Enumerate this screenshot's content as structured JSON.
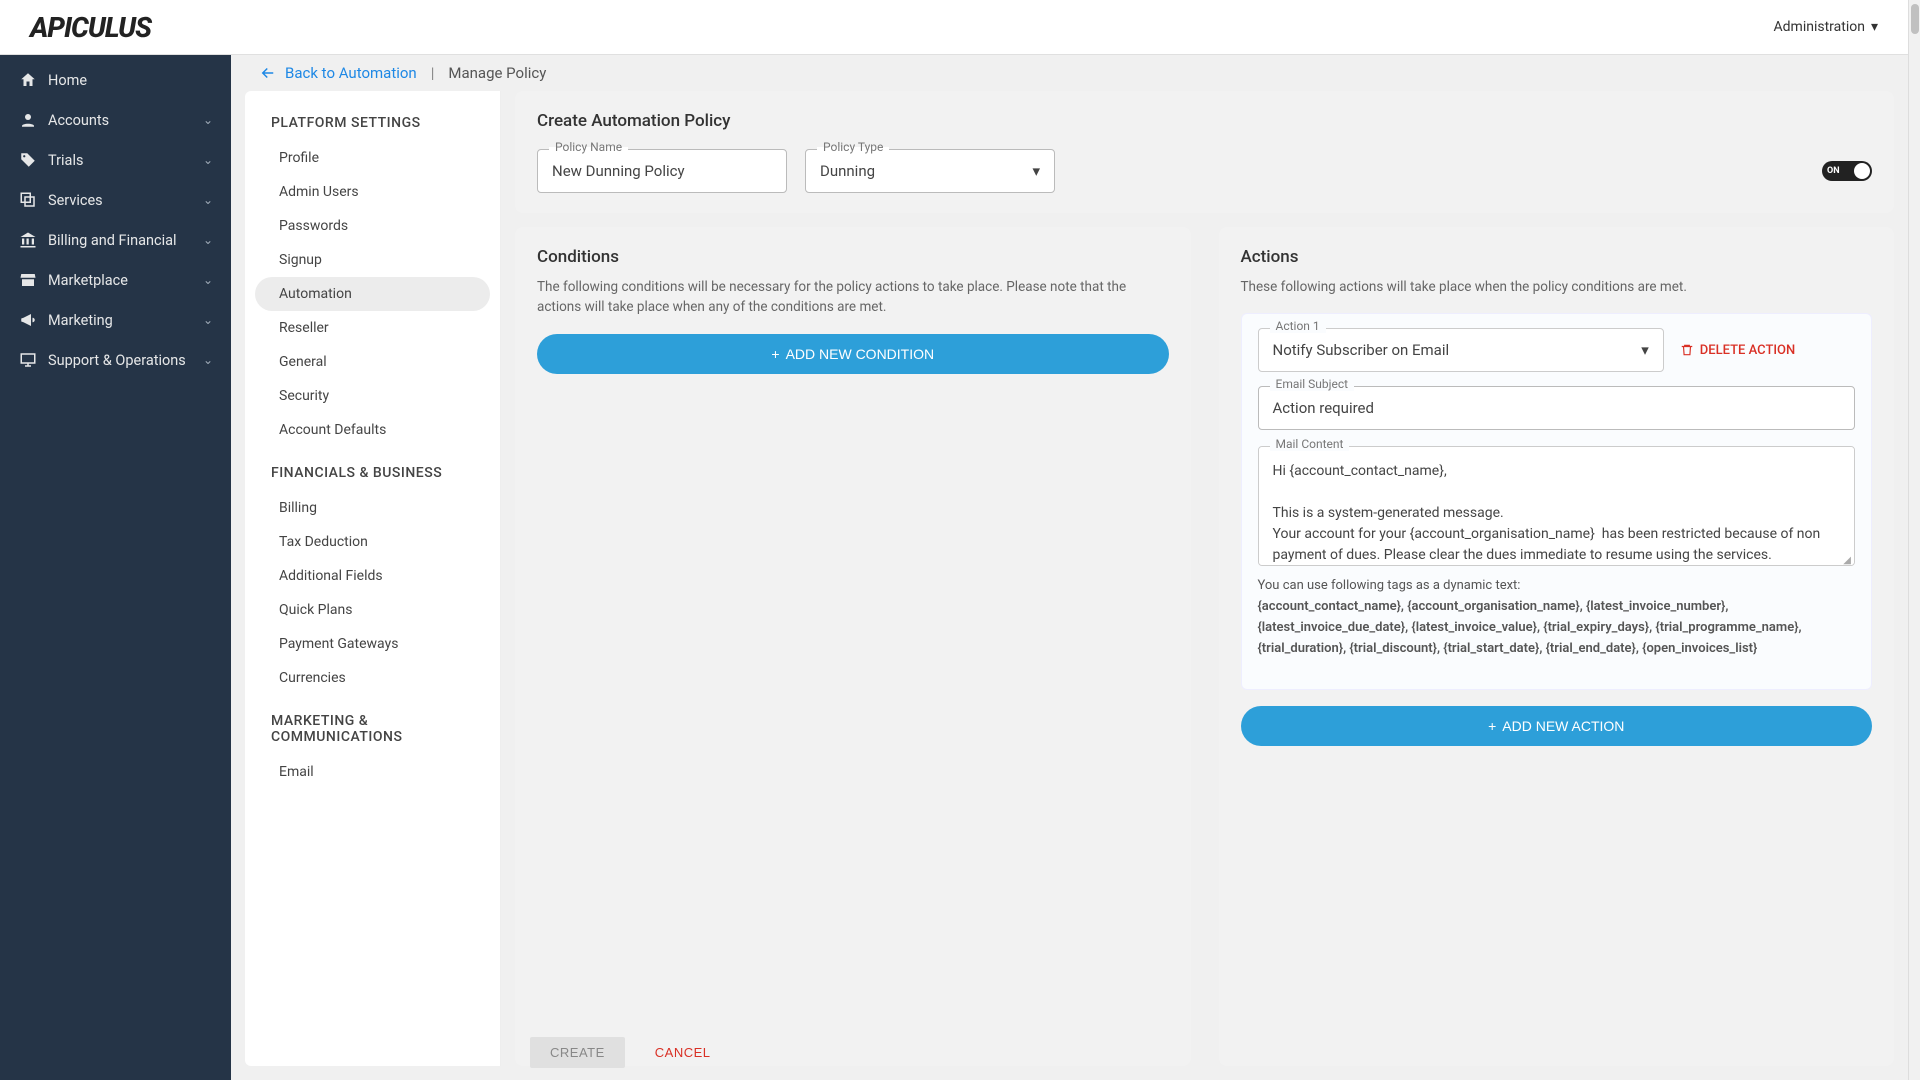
{
  "brand": "APICULUS",
  "top_nav": {
    "admin_label": "Administration"
  },
  "sidebar": {
    "items": [
      {
        "label": "Home",
        "icon": "home"
      },
      {
        "label": "Accounts",
        "icon": "account",
        "chev": true
      },
      {
        "label": "Trials",
        "icon": "tag",
        "chev": true
      },
      {
        "label": "Services",
        "icon": "layers",
        "chev": true
      },
      {
        "label": "Billing and Financial",
        "icon": "bank",
        "chev": true
      },
      {
        "label": "Marketplace",
        "icon": "store",
        "chev": true
      },
      {
        "label": "Marketing",
        "icon": "megaphone",
        "chev": true
      },
      {
        "label": "Support & Operations",
        "icon": "monitor",
        "chev": true
      }
    ]
  },
  "breadcrumb": {
    "back": "Back to Automation",
    "current": "Manage Policy"
  },
  "settings": {
    "groups": [
      {
        "title": "PLATFORM SETTINGS",
        "items": [
          "Profile",
          "Admin Users",
          "Passwords",
          "Signup",
          "Automation",
          "Reseller",
          "General",
          "Security",
          "Account Defaults"
        ],
        "active": "Automation"
      },
      {
        "title": "FINANCIALS & BUSINESS",
        "items": [
          "Billing",
          "Tax Deduction",
          "Additional Fields",
          "Quick Plans",
          "Payment Gateways",
          "Currencies"
        ]
      },
      {
        "title": "MARKETING & COMMUNICATIONS",
        "items": [
          "Email"
        ]
      }
    ]
  },
  "policy": {
    "card_title": "Create Automation Policy",
    "name_label": "Policy Name",
    "name_value": "New Dunning Policy",
    "type_label": "Policy Type",
    "type_value": "Dunning",
    "toggle_label": "ON"
  },
  "conditions": {
    "title": "Conditions",
    "desc": "The following conditions will be necessary for the policy actions to take place. Please note that the actions will take place when any of the conditions are met.",
    "add_btn": "ADD NEW CONDITION"
  },
  "actions": {
    "title": "Actions",
    "desc": "These following actions will take place when the policy conditions are met.",
    "action1_label": "Action 1",
    "action1_value": "Notify Subscriber on Email",
    "delete_label": "DELETE ACTION",
    "subject_label": "Email Subject",
    "subject_value": "Action required",
    "content_label": "Mail Content",
    "content_value": "Hi {account_contact_name},\n\nThis is a system-generated message.\nYour account for your {account_organisation_name}  has been restricted because of non payment of dues. Please clear the dues immediate to resume using the services.",
    "helper_intro": "You can use following tags as a dynamic text:",
    "helper_tags": "{account_contact_name}, {account_organisation_name}, {latest_invoice_number}, {latest_invoice_due_date}, {latest_invoice_value}, {trial_expiry_days}, {trial_programme_name}, {trial_duration}, {trial_discount}, {trial_start_date}, {trial_end_date}, {open_invoices_list}",
    "add_btn": "ADD NEW ACTION"
  },
  "footer": {
    "create": "CREATE",
    "cancel": "CANCEL"
  },
  "colors": {
    "sidebar_bg": "#253447",
    "primary": "#2d9fd9",
    "danger": "#d93025",
    "page_bg": "#f0f0f0"
  }
}
